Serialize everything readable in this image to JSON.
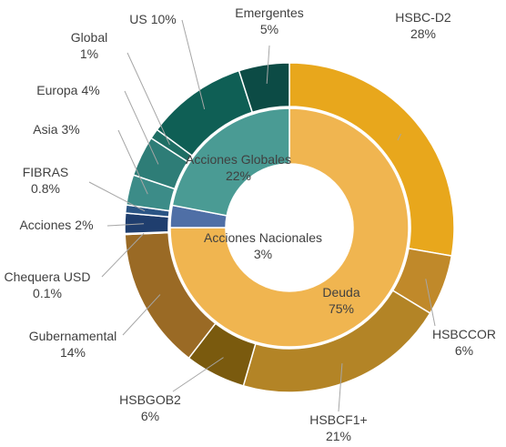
{
  "chart_data": {
    "type": "nested-donut",
    "inner": {
      "categories": [
        "Deuda",
        "Acciones Nacionales",
        "Acciones Globales"
      ],
      "values": [
        75,
        3,
        22
      ],
      "value_labels": [
        "75%",
        "3%",
        "22%"
      ],
      "colors": [
        "#f0b550",
        "#4f6fa6",
        "#4a9b94"
      ]
    },
    "outer": {
      "categories": [
        "HSBC-D2",
        "HSBCCOR",
        "HSBCF1+",
        "HSBGOB2",
        "Gubernamental",
        "Chequera USD",
        "Acciones",
        "FIBRAS",
        "Asia",
        "Europa",
        "Global",
        "US",
        "Emergentes"
      ],
      "values": [
        28,
        6,
        21,
        6,
        14,
        0.1,
        2,
        0.8,
        3,
        4,
        1,
        10,
        5
      ],
      "value_labels": [
        "28%",
        "6%",
        "21%",
        "6%",
        "14%",
        "0.1%",
        "2%",
        "0.8%",
        "3%",
        "4%",
        "1%",
        "10%",
        "5%"
      ],
      "colors": [
        "#e8a71c",
        "#c0892a",
        "#b38426",
        "#7a5a0e",
        "#9a6a25",
        "#9a6a25",
        "#1f3e6e",
        "#2b5585",
        "#3c8c88",
        "#2e7d77",
        "#1e6e64",
        "#0f5f55",
        "#0c4b45"
      ]
    }
  }
}
